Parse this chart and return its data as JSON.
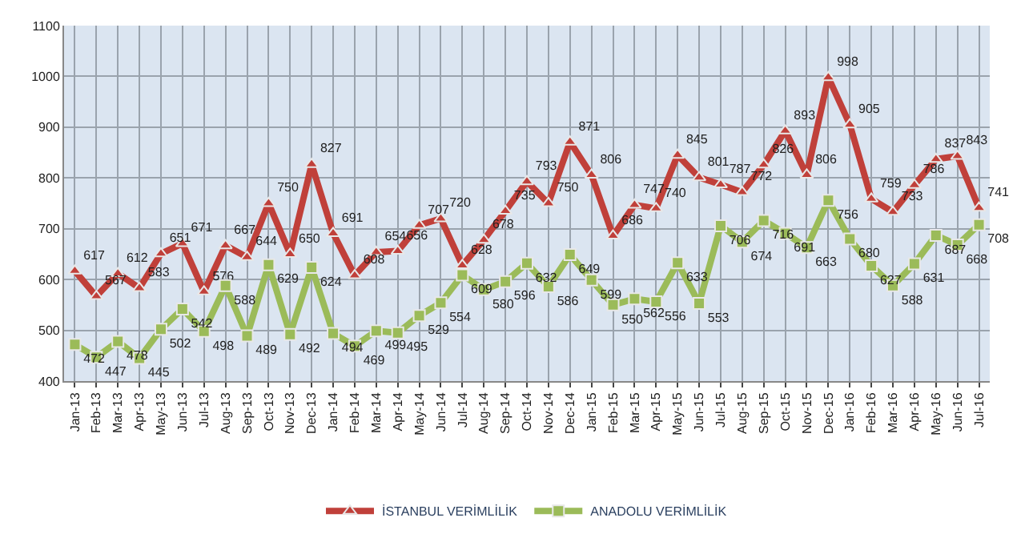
{
  "chart_data": {
    "type": "line",
    "categories": [
      "Jan-13",
      "Feb-13",
      "Mar-13",
      "Apr-13",
      "May-13",
      "Jun-13",
      "Jul-13",
      "Aug-13",
      "Sep-13",
      "Oct-13",
      "Nov-13",
      "Dec-13",
      "Jan-14",
      "Feb-14",
      "Mar-14",
      "Apr-14",
      "May-14",
      "Jun-14",
      "Jul-14",
      "Aug-14",
      "Sep-14",
      "Oct-14",
      "Nov-14",
      "Dec-14",
      "Jan-15",
      "Feb-15",
      "Mar-15",
      "Apr-15",
      "May-15",
      "Jun-15",
      "Jul-15",
      "Aug-15",
      "Sep-15",
      "Oct-15",
      "Nov-15",
      "Dec-15",
      "Jan-16",
      "Feb-16",
      "Mar-16",
      "Apr-16",
      "May-16",
      "Jun-16",
      "Jul-16"
    ],
    "series": [
      {
        "name": "İSTANBUL VERİMLİLİK",
        "color": "#c0403a",
        "marker": "triangle",
        "values": [
          617,
          567,
          612,
          583,
          651,
          671,
          576,
          667,
          644,
          750,
          650,
          827,
          691,
          608,
          654,
          656,
          707,
          720,
          628,
          678,
          735,
          793,
          750,
          871,
          806,
          686,
          747,
          740,
          845,
          801,
          787,
          772,
          826,
          893,
          806,
          998,
          905,
          759,
          733,
          786,
          837,
          843,
          741
        ]
      },
      {
        "name": "ANADOLU VERİMLİLİK",
        "color": "#9bbb59",
        "marker": "square",
        "values": [
          472,
          447,
          478,
          445,
          502,
          542,
          498,
          588,
          489,
          629,
          492,
          624,
          494,
          469,
          499,
          495,
          529,
          554,
          609,
          580,
          596,
          632,
          586,
          649,
          599,
          550,
          562,
          556,
          633,
          553,
          706,
          674,
          716,
          691,
          663,
          756,
          680,
          627,
          588,
          631,
          687,
          668,
          708
        ]
      }
    ],
    "ylim": [
      400,
      1100
    ],
    "yticks": [
      400,
      500,
      600,
      700,
      800,
      900,
      1000,
      1100
    ],
    "grid": true,
    "legend": "bottom",
    "data_labels": true,
    "line_style": "solid"
  }
}
